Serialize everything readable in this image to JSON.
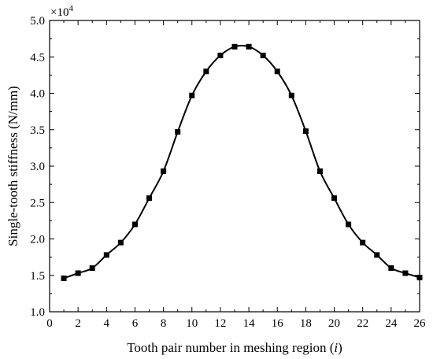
{
  "chart_data": {
    "type": "line",
    "xlabel": "Tooth pair number in meshing region (i)",
    "xlabel_parts": {
      "main": "Tooth pair number in meshing region (",
      "var": "i",
      "close": ")"
    },
    "ylabel": "Single-tooth stiffness (N/mm)",
    "y_multiplier": {
      "base": "×10",
      "exp": "4"
    },
    "xlim": [
      0,
      26
    ],
    "ylim": [
      1.0,
      5.0
    ],
    "x_ticks": [
      0,
      2,
      4,
      6,
      8,
      10,
      12,
      14,
      16,
      18,
      20,
      22,
      24,
      26
    ],
    "x_tick_labels": [
      "0",
      "2",
      "4",
      "6",
      "8",
      "10",
      "12",
      "14",
      "16",
      "18",
      "20",
      "22",
      "24",
      "26"
    ],
    "y_ticks": [
      1.0,
      1.5,
      2.0,
      2.5,
      3.0,
      3.5,
      4.0,
      4.5,
      5.0
    ],
    "y_tick_labels": [
      "1.0",
      "1.5",
      "2.0",
      "2.5",
      "3.0",
      "3.5",
      "4.0",
      "4.5",
      "5.0"
    ],
    "grid": false,
    "marker": "square",
    "line_color": "#000000",
    "series": [
      {
        "x": [
          1,
          2,
          3,
          4,
          5,
          6,
          7,
          8,
          9,
          10,
          11,
          12,
          13,
          14,
          15,
          16,
          17,
          18,
          19,
          20,
          21,
          22,
          23,
          24,
          25,
          26
        ],
        "values": [
          1.46,
          1.53,
          1.6,
          1.78,
          1.95,
          2.2,
          2.56,
          2.93,
          3.47,
          3.97,
          4.3,
          4.52,
          4.64,
          4.64,
          4.52,
          4.3,
          3.97,
          3.48,
          2.93,
          2.56,
          2.2,
          1.95,
          1.78,
          1.6,
          1.53,
          1.47
        ]
      }
    ]
  }
}
